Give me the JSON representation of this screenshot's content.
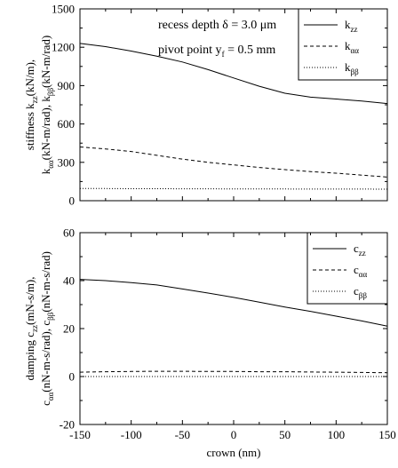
{
  "chart_data": [
    {
      "type": "line",
      "ylabel_line1": "stiffness k",
      "ylabel_line1_sub": "zz",
      "ylabel_line1_rest": "(kN/m),",
      "ylabel_line2_prefix": "k",
      "ylabel_line2_sub1": "αα",
      "ylabel_line2_mid": "(kN-m/rad), k",
      "ylabel_line2_sub2": "ββ",
      "ylabel_line2_rest": "(kN-m/rad)",
      "annotation_line1": "recess depth δ = 3.0 μm",
      "annotation_line2_prefix": "pivot point y",
      "annotation_line2_sub": "f",
      "annotation_line2_rest": " = 0.5 mm",
      "xlim": [
        -150,
        150
      ],
      "ylim": [
        0,
        1500
      ],
      "xticks": [
        -150,
        -100,
        -50,
        0,
        50,
        100,
        150
      ],
      "yticks": [
        0,
        300,
        600,
        900,
        1200,
        1500
      ],
      "legend_position": "top-right",
      "x": [
        -150,
        -125,
        -100,
        -75,
        -50,
        -25,
        0,
        25,
        50,
        75,
        100,
        125,
        150
      ],
      "series": [
        {
          "name": "k",
          "sub": "zz",
          "dash": "solid",
          "values": [
            1230,
            1205,
            1170,
            1130,
            1085,
            1025,
            960,
            895,
            840,
            810,
            795,
            780,
            760
          ]
        },
        {
          "name": "k",
          "sub": "αα",
          "dash": "dashed",
          "values": [
            420,
            405,
            385,
            355,
            325,
            300,
            280,
            260,
            243,
            228,
            215,
            200,
            185
          ]
        },
        {
          "name": "k",
          "sub": "ββ",
          "dash": "dotted",
          "values": [
            95,
            95,
            94,
            94,
            93,
            93,
            92,
            92,
            92,
            91,
            91,
            91,
            90
          ]
        }
      ]
    },
    {
      "type": "line",
      "ylabel_line1": "damping c",
      "ylabel_line1_sub": "zz",
      "ylabel_line1_rest": "(mN-s/m),",
      "ylabel_line2_prefix": "c",
      "ylabel_line2_sub1": "αα",
      "ylabel_line2_mid": "(nN-m-s/rad), c",
      "ylabel_line2_sub2": "ββ",
      "ylabel_line2_rest": "(nN-m-s/rad)",
      "xlabel": "crown (nm)",
      "xlim": [
        -150,
        150
      ],
      "ylim": [
        -20,
        60
      ],
      "xticks": [
        -150,
        -100,
        -50,
        0,
        50,
        100,
        150
      ],
      "yticks": [
        -20,
        0,
        20,
        40,
        60
      ],
      "legend_position": "top-right",
      "x": [
        -150,
        -125,
        -100,
        -75,
        -50,
        -25,
        0,
        25,
        50,
        75,
        100,
        125,
        150
      ],
      "series": [
        {
          "name": "c",
          "sub": "zz",
          "dash": "solid",
          "values": [
            40.5,
            40,
            39.2,
            38.2,
            36.5,
            34.8,
            33,
            31,
            29,
            27.2,
            25.2,
            23.2,
            21
          ]
        },
        {
          "name": "c",
          "sub": "αα",
          "dash": "dashed",
          "values": [
            1.8,
            2,
            2.1,
            2.2,
            2.2,
            2.1,
            2.1,
            2,
            2,
            1.9,
            1.8,
            1.7,
            1.6
          ]
        },
        {
          "name": "c",
          "sub": "ββ",
          "dash": "dotted",
          "values": [
            0,
            0,
            0,
            0,
            0,
            0,
            0,
            0,
            0,
            0,
            0,
            0,
            0
          ]
        }
      ]
    }
  ]
}
